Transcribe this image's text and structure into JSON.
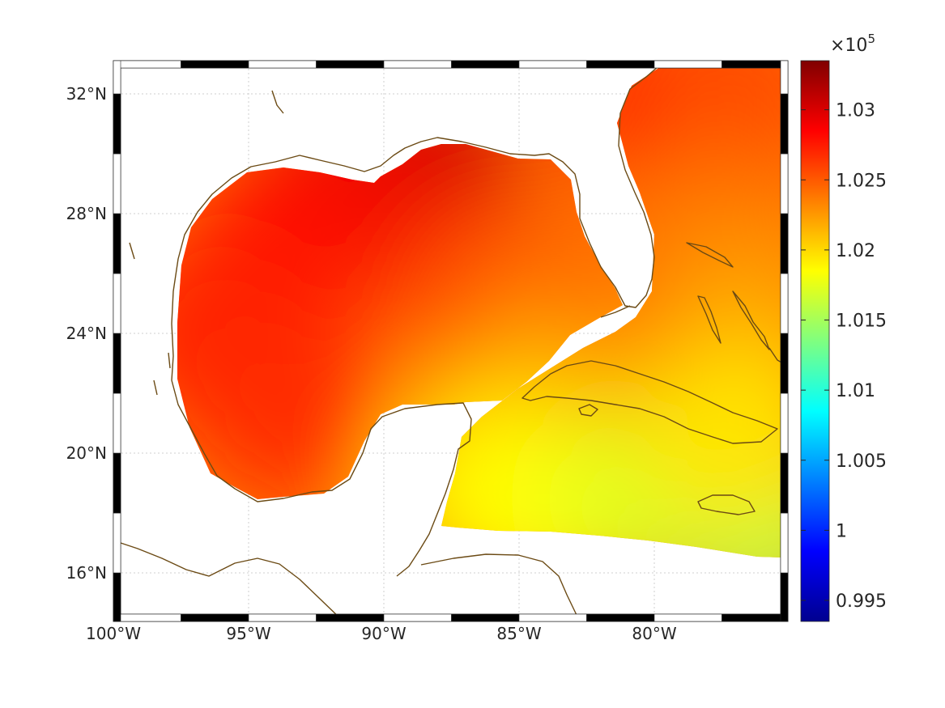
{
  "map": {
    "type": "heatmap",
    "lon_range": [
      -100,
      -75.5
    ],
    "lat_range": [
      14.2,
      33
    ],
    "lon_ticks": [
      -100,
      -95,
      -90,
      -85,
      -80
    ],
    "lon_tick_labels": [
      "100°W",
      "95°W",
      "90°W",
      "85°W",
      "80°W"
    ],
    "lat_ticks": [
      16,
      20,
      24,
      28,
      32
    ],
    "lat_tick_labels": [
      "16°N",
      "20°N",
      "24°N",
      "28°N",
      "32°N"
    ],
    "grid": true,
    "coastline_color": "#6b4a14",
    "frame": "black-white-ladder"
  },
  "colorbar": {
    "exponent_label": "×10",
    "exponent_power": "5",
    "range": [
      0.9935,
      1.0335
    ],
    "ticks": [
      0.995,
      1,
      1.005,
      1.01,
      1.015,
      1.02,
      1.025,
      1.03
    ],
    "tick_labels": [
      "0.995",
      "1",
      "1.005",
      "1.01",
      "1.015",
      "1.02",
      "1.025",
      "1.03"
    ],
    "colormap": "jet",
    "colormap_stops": [
      "#00008f",
      "#0000ff",
      "#00ffff",
      "#ffff00",
      "#ff0000",
      "#800000"
    ]
  },
  "field_samples": [
    {
      "lon": -88.5,
      "lat": 29.5,
      "value": 1.0305
    },
    {
      "lon": -91.5,
      "lat": 28.8,
      "value": 1.0292
    },
    {
      "lon": -94,
      "lat": 26.5,
      "value": 1.0282
    },
    {
      "lon": -96.5,
      "lat": 24,
      "value": 1.0272
    },
    {
      "lon": -93.5,
      "lat": 21.5,
      "value": 1.0268
    },
    {
      "lon": -86,
      "lat": 25.5,
      "value": 1.0262
    },
    {
      "lon": -84,
      "lat": 24.5,
      "value": 1.0245
    },
    {
      "lon": -79.5,
      "lat": 31.5,
      "value": 1.0285
    },
    {
      "lon": -77,
      "lat": 32,
      "value": 1.0255
    },
    {
      "lon": -78,
      "lat": 27,
      "value": 1.0238
    },
    {
      "lon": -76.5,
      "lat": 24,
      "value": 1.0222
    },
    {
      "lon": -84,
      "lat": 21.5,
      "value": 1.0218
    },
    {
      "lon": -86.5,
      "lat": 19,
      "value": 1.0195
    },
    {
      "lon": -84.5,
      "lat": 18.2,
      "value": 1.0185
    },
    {
      "lon": -80,
      "lat": 18.5,
      "value": 1.0172
    },
    {
      "lon": -76,
      "lat": 17.6,
      "value": 1.0158
    },
    {
      "lon": -77,
      "lat": 20.5,
      "value": 1.0195
    }
  ]
}
